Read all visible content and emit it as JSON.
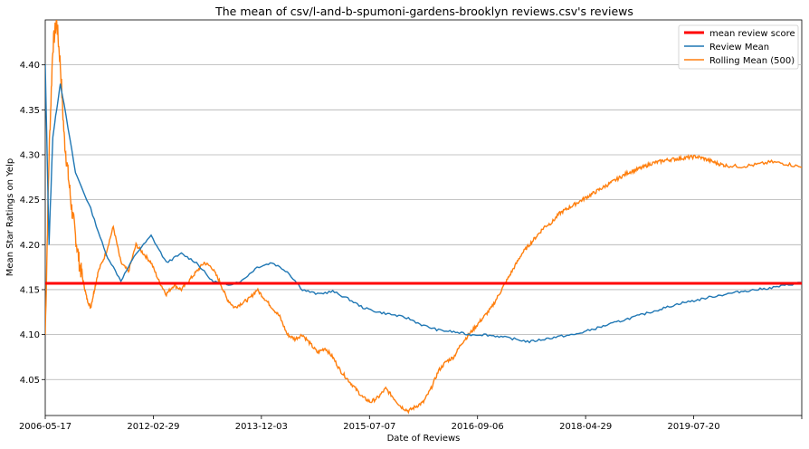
{
  "chart_data": {
    "type": "line",
    "title": "The mean of csv/l-and-b-spumoni-gardens-brooklyn reviews.csv's reviews",
    "xlabel": "Date of Reviews",
    "ylabel": "Mean Star Ratings on Yelp",
    "ylim": [
      4.01,
      4.45
    ],
    "x_ticks": [
      "2006-05-17",
      "2012-02-29",
      "2013-12-03",
      "2015-07-07",
      "2016-09-06",
      "2018-04-29",
      "2019-07-20"
    ],
    "y_ticks": [
      4.05,
      4.1,
      4.15,
      4.2,
      4.25,
      4.3,
      4.35,
      4.4
    ],
    "grid": "horizontal",
    "legend_position": "top-right",
    "series": [
      {
        "name": "mean review score",
        "color": "#ff0000",
        "style": "constant",
        "value": 4.157
      },
      {
        "name": "Review Mean",
        "color": "#1f77b4",
        "points": [
          [
            0.0,
            4.4
          ],
          [
            0.005,
            4.2
          ],
          [
            0.01,
            4.32
          ],
          [
            0.02,
            4.38
          ],
          [
            0.04,
            4.28
          ],
          [
            0.06,
            4.24
          ],
          [
            0.08,
            4.19
          ],
          [
            0.1,
            4.16
          ],
          [
            0.12,
            4.19
          ],
          [
            0.14,
            4.21
          ],
          [
            0.16,
            4.18
          ],
          [
            0.18,
            4.19
          ],
          [
            0.2,
            4.18
          ],
          [
            0.22,
            4.16
          ],
          [
            0.24,
            4.155
          ],
          [
            0.26,
            4.16
          ],
          [
            0.28,
            4.175
          ],
          [
            0.3,
            4.18
          ],
          [
            0.32,
            4.17
          ],
          [
            0.34,
            4.15
          ],
          [
            0.36,
            4.145
          ],
          [
            0.38,
            4.148
          ],
          [
            0.4,
            4.14
          ],
          [
            0.42,
            4.13
          ],
          [
            0.44,
            4.125
          ],
          [
            0.46,
            4.122
          ],
          [
            0.48,
            4.118
          ],
          [
            0.5,
            4.11
          ],
          [
            0.52,
            4.105
          ],
          [
            0.54,
            4.103
          ],
          [
            0.56,
            4.1
          ],
          [
            0.58,
            4.1
          ],
          [
            0.6,
            4.098
          ],
          [
            0.62,
            4.095
          ],
          [
            0.64,
            4.092
          ],
          [
            0.66,
            4.095
          ],
          [
            0.68,
            4.098
          ],
          [
            0.7,
            4.1
          ],
          [
            0.72,
            4.105
          ],
          [
            0.74,
            4.11
          ],
          [
            0.76,
            4.115
          ],
          [
            0.78,
            4.12
          ],
          [
            0.8,
            4.125
          ],
          [
            0.82,
            4.13
          ],
          [
            0.84,
            4.135
          ],
          [
            0.86,
            4.138
          ],
          [
            0.88,
            4.142
          ],
          [
            0.9,
            4.145
          ],
          [
            0.92,
            4.148
          ],
          [
            0.94,
            4.15
          ],
          [
            0.96,
            4.152
          ],
          [
            0.98,
            4.155
          ],
          [
            1.0,
            4.158
          ]
        ]
      },
      {
        "name": "Rolling Mean (500)",
        "color": "#ff7f0e",
        "points": [
          [
            0.0,
            4.1
          ],
          [
            0.005,
            4.3
          ],
          [
            0.01,
            4.42
          ],
          [
            0.015,
            4.45
          ],
          [
            0.02,
            4.4
          ],
          [
            0.025,
            4.32
          ],
          [
            0.03,
            4.28
          ],
          [
            0.035,
            4.24
          ],
          [
            0.04,
            4.21
          ],
          [
            0.045,
            4.18
          ],
          [
            0.05,
            4.16
          ],
          [
            0.055,
            4.14
          ],
          [
            0.06,
            4.13
          ],
          [
            0.065,
            4.15
          ],
          [
            0.07,
            4.17
          ],
          [
            0.08,
            4.19
          ],
          [
            0.09,
            4.22
          ],
          [
            0.1,
            4.18
          ],
          [
            0.11,
            4.17
          ],
          [
            0.12,
            4.2
          ],
          [
            0.13,
            4.19
          ],
          [
            0.14,
            4.18
          ],
          [
            0.15,
            4.16
          ],
          [
            0.16,
            4.145
          ],
          [
            0.17,
            4.155
          ],
          [
            0.18,
            4.15
          ],
          [
            0.19,
            4.16
          ],
          [
            0.2,
            4.17
          ],
          [
            0.21,
            4.18
          ],
          [
            0.22,
            4.175
          ],
          [
            0.23,
            4.16
          ],
          [
            0.24,
            4.14
          ],
          [
            0.25,
            4.13
          ],
          [
            0.26,
            4.135
          ],
          [
            0.27,
            4.14
          ],
          [
            0.28,
            4.15
          ],
          [
            0.29,
            4.14
          ],
          [
            0.3,
            4.13
          ],
          [
            0.31,
            4.12
          ],
          [
            0.32,
            4.1
          ],
          [
            0.33,
            4.095
          ],
          [
            0.34,
            4.1
          ],
          [
            0.35,
            4.09
          ],
          [
            0.36,
            4.08
          ],
          [
            0.37,
            4.085
          ],
          [
            0.38,
            4.075
          ],
          [
            0.39,
            4.06
          ],
          [
            0.4,
            4.05
          ],
          [
            0.41,
            4.04
          ],
          [
            0.42,
            4.03
          ],
          [
            0.43,
            4.025
          ],
          [
            0.44,
            4.03
          ],
          [
            0.45,
            4.04
          ],
          [
            0.46,
            4.03
          ],
          [
            0.47,
            4.02
          ],
          [
            0.48,
            4.015
          ],
          [
            0.49,
            4.02
          ],
          [
            0.5,
            4.025
          ],
          [
            0.51,
            4.04
          ],
          [
            0.52,
            4.06
          ],
          [
            0.53,
            4.07
          ],
          [
            0.54,
            4.075
          ],
          [
            0.55,
            4.09
          ],
          [
            0.56,
            4.1
          ],
          [
            0.57,
            4.11
          ],
          [
            0.58,
            4.12
          ],
          [
            0.59,
            4.13
          ],
          [
            0.6,
            4.145
          ],
          [
            0.61,
            4.16
          ],
          [
            0.62,
            4.175
          ],
          [
            0.63,
            4.19
          ],
          [
            0.64,
            4.2
          ],
          [
            0.65,
            4.21
          ],
          [
            0.66,
            4.22
          ],
          [
            0.67,
            4.225
          ],
          [
            0.68,
            4.235
          ],
          [
            0.69,
            4.24
          ],
          [
            0.7,
            4.245
          ],
          [
            0.71,
            4.25
          ],
          [
            0.72,
            4.255
          ],
          [
            0.73,
            4.26
          ],
          [
            0.74,
            4.265
          ],
          [
            0.75,
            4.27
          ],
          [
            0.76,
            4.275
          ],
          [
            0.77,
            4.28
          ],
          [
            0.78,
            4.283
          ],
          [
            0.79,
            4.286
          ],
          [
            0.8,
            4.29
          ],
          [
            0.81,
            4.292
          ],
          [
            0.82,
            4.294
          ],
          [
            0.83,
            4.295
          ],
          [
            0.84,
            4.296
          ],
          [
            0.85,
            4.297
          ],
          [
            0.86,
            4.298
          ],
          [
            0.87,
            4.296
          ],
          [
            0.88,
            4.293
          ],
          [
            0.89,
            4.29
          ],
          [
            0.9,
            4.288
          ],
          [
            0.92,
            4.287
          ],
          [
            0.94,
            4.289
          ],
          [
            0.96,
            4.292
          ],
          [
            0.98,
            4.29
          ],
          [
            1.0,
            4.286
          ]
        ]
      }
    ]
  }
}
